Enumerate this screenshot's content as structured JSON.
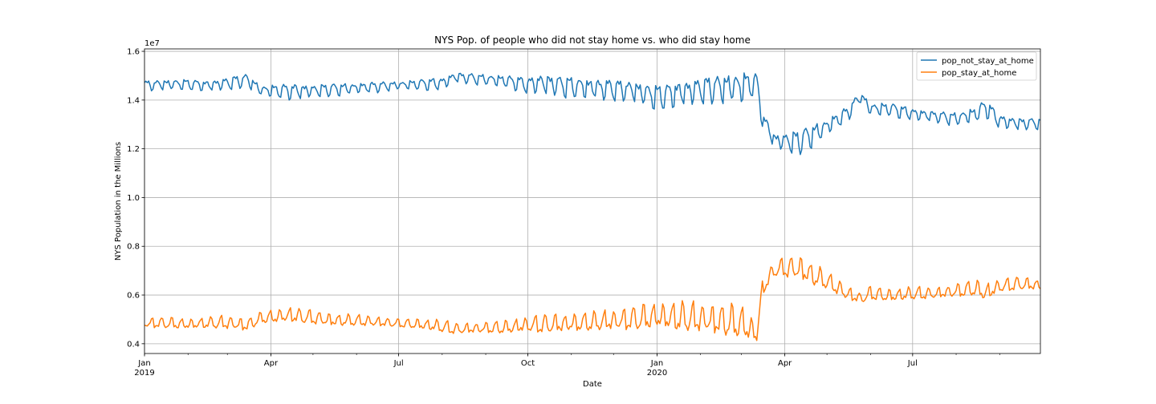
{
  "chart_data": {
    "type": "line",
    "title": "NYS Pop. of people who did not stay home vs. who did stay home",
    "xlabel": "Date",
    "ylabel": "NYS Population in the Millions",
    "y_offset_label": "1e7",
    "xlim": [
      "2019-01-01",
      "2020-09-30"
    ],
    "ylim": [
      0.36,
      1.61
    ],
    "y_ticks": [
      "0.4",
      "0.6",
      "0.8",
      "1.0",
      "1.2",
      "1.4",
      "1.6"
    ],
    "x_ticks": [
      {
        "date": "2019-01-01",
        "label": "Jan",
        "year": "2019"
      },
      {
        "date": "2019-04-01",
        "label": "Apr",
        "year": ""
      },
      {
        "date": "2019-07-01",
        "label": "Jul",
        "year": ""
      },
      {
        "date": "2019-10-01",
        "label": "Oct",
        "year": ""
      },
      {
        "date": "2020-01-01",
        "label": "Jan",
        "year": "2020"
      },
      {
        "date": "2020-04-01",
        "label": "Apr",
        "year": ""
      },
      {
        "date": "2020-07-01",
        "label": "Jul",
        "year": ""
      }
    ],
    "grid": true,
    "legend_position": "top-right",
    "series": [
      {
        "name": "pop_not_stay_at_home",
        "color": "#1f77b4",
        "weekly_dates": [
          "2019-01-01",
          "2019-01-15",
          "2019-02-01",
          "2019-02-15",
          "2019-03-01",
          "2019-03-15",
          "2019-03-25",
          "2019-04-15",
          "2019-05-01",
          "2019-05-15",
          "2019-06-01",
          "2019-06-15",
          "2019-07-01",
          "2019-07-15",
          "2019-08-01",
          "2019-08-10",
          "2019-09-01",
          "2019-09-15",
          "2019-10-01",
          "2019-10-10",
          "2019-11-01",
          "2019-11-15",
          "2019-12-01",
          "2019-12-15",
          "2020-01-01",
          "2020-01-15",
          "2020-02-01",
          "2020-02-15",
          "2020-03-01",
          "2020-03-07",
          "2020-03-12",
          "2020-03-16",
          "2020-03-25",
          "2020-04-01",
          "2020-04-10",
          "2020-04-25",
          "2020-05-01",
          "2020-05-15",
          "2020-05-25",
          "2020-06-01",
          "2020-06-15",
          "2020-07-01",
          "2020-07-15",
          "2020-08-01",
          "2020-08-15",
          "2020-08-22",
          "2020-09-01",
          "2020-09-15",
          "2020-09-30"
        ],
        "base": [
          1.465,
          1.47,
          1.47,
          1.465,
          1.475,
          1.49,
          1.445,
          1.445,
          1.445,
          1.45,
          1.455,
          1.46,
          1.465,
          1.47,
          1.475,
          1.5,
          1.49,
          1.485,
          1.47,
          1.48,
          1.465,
          1.46,
          1.455,
          1.45,
          1.425,
          1.44,
          1.455,
          1.465,
          1.47,
          1.475,
          1.48,
          1.33,
          1.24,
          1.24,
          1.24,
          1.28,
          1.3,
          1.35,
          1.42,
          1.37,
          1.37,
          1.35,
          1.34,
          1.33,
          1.35,
          1.38,
          1.32,
          1.31,
          1.31
        ],
        "amplitude": [
          0.02,
          0.02,
          0.02,
          0.02,
          0.025,
          0.025,
          0.02,
          0.03,
          0.025,
          0.025,
          0.02,
          0.02,
          0.015,
          0.02,
          0.025,
          0.02,
          0.02,
          0.025,
          0.03,
          0.04,
          0.04,
          0.04,
          0.04,
          0.04,
          0.05,
          0.05,
          0.05,
          0.055,
          0.06,
          0.05,
          0.04,
          0.03,
          0.03,
          0.035,
          0.05,
          0.04,
          0.03,
          0.03,
          0.02,
          0.025,
          0.025,
          0.025,
          0.02,
          0.025,
          0.03,
          0.035,
          0.025,
          0.025,
          0.02
        ]
      },
      {
        "name": "pop_stay_at_home",
        "color": "#ff7f0e",
        "weekly_dates": [
          "2019-01-01",
          "2019-01-15",
          "2019-02-01",
          "2019-02-15",
          "2019-03-01",
          "2019-03-15",
          "2019-03-25",
          "2019-04-15",
          "2019-05-01",
          "2019-05-15",
          "2019-06-01",
          "2019-06-15",
          "2019-07-01",
          "2019-07-15",
          "2019-08-01",
          "2019-08-10",
          "2019-09-01",
          "2019-09-15",
          "2019-10-01",
          "2019-10-10",
          "2019-11-01",
          "2019-11-15",
          "2019-12-01",
          "2019-12-15",
          "2020-01-01",
          "2020-01-15",
          "2020-02-01",
          "2020-02-15",
          "2020-03-01",
          "2020-03-07",
          "2020-03-12",
          "2020-03-16",
          "2020-03-25",
          "2020-04-01",
          "2020-04-10",
          "2020-04-25",
          "2020-05-01",
          "2020-05-15",
          "2020-05-25",
          "2020-06-01",
          "2020-06-15",
          "2020-07-01",
          "2020-07-15",
          "2020-08-01",
          "2020-08-15",
          "2020-08-22",
          "2020-09-01",
          "2020-09-15",
          "2020-09-30"
        ],
        "base": [
          0.48,
          0.48,
          0.475,
          0.48,
          0.48,
          0.47,
          0.5,
          0.51,
          0.5,
          0.49,
          0.49,
          0.485,
          0.48,
          0.475,
          0.465,
          0.455,
          0.46,
          0.46,
          0.47,
          0.47,
          0.475,
          0.48,
          0.485,
          0.49,
          0.5,
          0.495,
          0.49,
          0.48,
          0.47,
          0.45,
          0.43,
          0.62,
          0.7,
          0.7,
          0.7,
          0.66,
          0.65,
          0.6,
          0.58,
          0.6,
          0.59,
          0.6,
          0.6,
          0.61,
          0.62,
          0.6,
          0.63,
          0.64,
          0.635
        ],
        "amplitude": [
          0.02,
          0.02,
          0.02,
          0.02,
          0.025,
          0.025,
          0.02,
          0.03,
          0.025,
          0.025,
          0.02,
          0.02,
          0.015,
          0.02,
          0.025,
          0.02,
          0.02,
          0.025,
          0.03,
          0.035,
          0.035,
          0.035,
          0.04,
          0.045,
          0.05,
          0.055,
          0.055,
          0.06,
          0.06,
          0.05,
          0.04,
          0.03,
          0.03,
          0.035,
          0.05,
          0.04,
          0.03,
          0.03,
          0.02,
          0.025,
          0.025,
          0.025,
          0.02,
          0.025,
          0.03,
          0.035,
          0.025,
          0.025,
          0.02
        ]
      }
    ]
  }
}
